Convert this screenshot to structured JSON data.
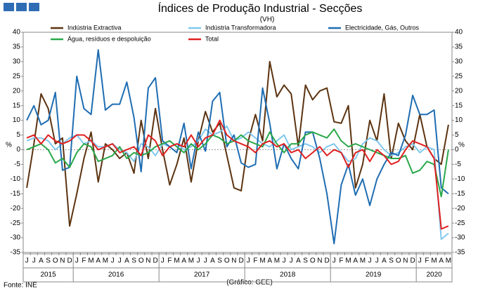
{
  "chart_data": {
    "type": "line",
    "title": "Índices de Produção Industrial - Secções",
    "subtitle": "(VH)",
    "y_label": "%",
    "source": "Fonte: INE",
    "credit": "(Gráfico: GEE)",
    "categories": [
      "J",
      "J",
      "A",
      "S",
      "O",
      "N",
      "D",
      "J",
      "F",
      "M",
      "A",
      "M",
      "J",
      "J",
      "A",
      "S",
      "O",
      "N",
      "D",
      "J",
      "F",
      "M",
      "A",
      "M",
      "J",
      "J",
      "A",
      "S",
      "O",
      "N",
      "D",
      "J",
      "F",
      "M",
      "A",
      "M",
      "J",
      "J",
      "A",
      "S",
      "O",
      "N",
      "D",
      "J",
      "F",
      "M",
      "A",
      "M",
      "J",
      "J",
      "A",
      "S",
      "O",
      "N",
      "D",
      "J",
      "F",
      "M",
      "A",
      "M"
    ],
    "years": [
      "2015",
      "2016",
      "2017",
      "2018",
      "2019",
      "2020"
    ],
    "ylim": [
      -35,
      40
    ],
    "yticks": [
      -35,
      -30,
      -25,
      -20,
      -15,
      -10,
      -5,
      0,
      5,
      10,
      15,
      20,
      25,
      30,
      35,
      40
    ],
    "series": [
      {
        "name": "Indústria Extractiva",
        "color": "#5c3310",
        "values": [
          -13,
          2,
          19,
          14,
          2,
          4,
          -26,
          -15,
          -3,
          6,
          -11,
          2,
          0,
          -3,
          -1,
          -8,
          10,
          -3,
          14,
          0,
          -12,
          -5,
          4,
          -11,
          3,
          13,
          6,
          9,
          -2,
          -13,
          -14,
          3,
          12,
          3,
          30,
          18,
          22,
          19,
          1,
          22,
          17,
          20,
          21,
          9.5,
          9,
          15,
          -13,
          -5,
          10,
          3,
          19,
          -3,
          9,
          3,
          0,
          12,
          1,
          -3,
          -5,
          8.5
        ]
      },
      {
        "name": "Indústria Transformadora",
        "color": "#80c8ee",
        "values": [
          3,
          4,
          4,
          3,
          0,
          2,
          4,
          5,
          2,
          3,
          1,
          1,
          2,
          0,
          -1,
          -4,
          2,
          1,
          -2,
          2,
          1,
          2,
          0,
          1,
          3,
          7,
          5,
          6,
          8,
          3,
          4,
          6,
          4,
          2,
          1,
          3,
          5,
          0,
          1,
          2,
          1,
          -1,
          1,
          2,
          -1,
          -4,
          -3,
          2,
          4,
          3,
          0,
          -2,
          -1,
          1,
          2,
          -1,
          1,
          0,
          -30.5,
          -28.5
        ]
      },
      {
        "name": "Electricidade, Gás, Outros",
        "color": "#1f6db2",
        "values": [
          10,
          15,
          8.5,
          10,
          19.5,
          -7,
          -6,
          25,
          14,
          12,
          34,
          13.5,
          15.5,
          15.5,
          23,
          11,
          -7.5,
          21,
          24.5,
          3,
          1,
          -1,
          9,
          -6.5,
          6,
          -0.5,
          16.5,
          19.5,
          1,
          5,
          -4.5,
          -6,
          -5,
          21,
          9,
          -6.5,
          2,
          -3,
          -6.5,
          6,
          6,
          -3,
          -15,
          -32,
          -12,
          -5,
          -15.5,
          -10,
          -19,
          -10,
          -5,
          -1,
          -2,
          5,
          18.5,
          12,
          12,
          13.5,
          -13,
          -15
        ]
      },
      {
        "name": "Água, resíduos e despoluição",
        "color": "#2aa84a",
        "values": [
          0,
          1,
          2,
          0,
          -4.5,
          -3,
          -6,
          -1,
          2,
          1,
          -4,
          -3,
          -2,
          1,
          -3,
          -1,
          -2,
          -1,
          1,
          2,
          3,
          1,
          -1,
          2,
          0,
          2,
          5,
          4,
          2,
          3,
          5,
          3,
          2,
          1,
          6,
          2,
          -1,
          2,
          2,
          5,
          6,
          5,
          4,
          7,
          3,
          1,
          2,
          1,
          0,
          -1,
          -2,
          -3,
          -3,
          -2,
          -8,
          -7,
          -4,
          -5,
          -16,
          0
        ]
      },
      {
        "name": "Total",
        "color": "#e02020",
        "values": [
          4,
          5,
          2,
          5,
          3,
          2,
          3,
          5,
          5,
          3,
          0,
          1,
          2,
          -1,
          0,
          1,
          -2,
          5,
          3,
          -2,
          1,
          2,
          1,
          5,
          1,
          4,
          5,
          10,
          5,
          3,
          2,
          1,
          -1,
          2,
          3,
          1,
          2,
          -1,
          0,
          -3,
          -1,
          1,
          -2,
          0,
          -1,
          -6,
          -1,
          0,
          -4,
          0,
          -2,
          -5,
          -4,
          0,
          3,
          2,
          1,
          -3,
          -27,
          -26
        ]
      }
    ]
  }
}
